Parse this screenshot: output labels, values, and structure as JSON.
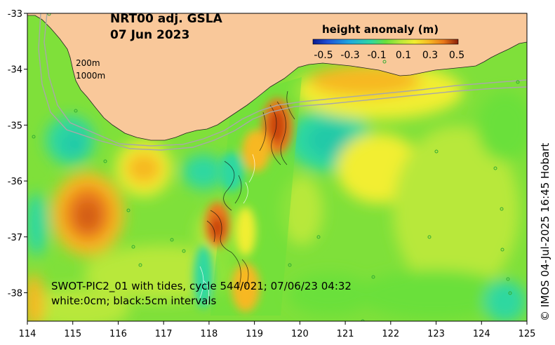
{
  "map": {
    "title_line1": "NRT00 adj. GSLA",
    "title_line2": "07 Jun 2023",
    "x_ticks": [
      "114",
      "115",
      "116",
      "117",
      "118",
      "119",
      "120",
      "121",
      "122",
      "123",
      "124",
      "125"
    ],
    "y_ticks": [
      "-33",
      "-34",
      "-35",
      "-36",
      "-37",
      "-38"
    ],
    "isobath_labels": [
      "200m",
      "1000m"
    ],
    "swot_line1": "SWOT-PIC2_01 with tides, cycle 544/021; 07/06/23 04:32",
    "swot_line2": "white:0cm; black:5cm intervals",
    "credit": "© IMOS 04-Jul-2025 16:45 Hobart"
  },
  "legend": {
    "title": "height anomaly (m)",
    "ticks": [
      "-0.5",
      "-0.3",
      "-0.1",
      "0.1",
      "0.3",
      "0.5"
    ]
  },
  "colors": {
    "land": "#f9c89a",
    "sea_base": "#7fe03a",
    "colormap": [
      "#0a1a8f",
      "#1f4fd6",
      "#1fa8e0",
      "#2fd8a0",
      "#6be03a",
      "#b8e83a",
      "#f2ee30",
      "#f7b823",
      "#e9771a",
      "#c8420f",
      "#8a1f0a"
    ]
  }
}
